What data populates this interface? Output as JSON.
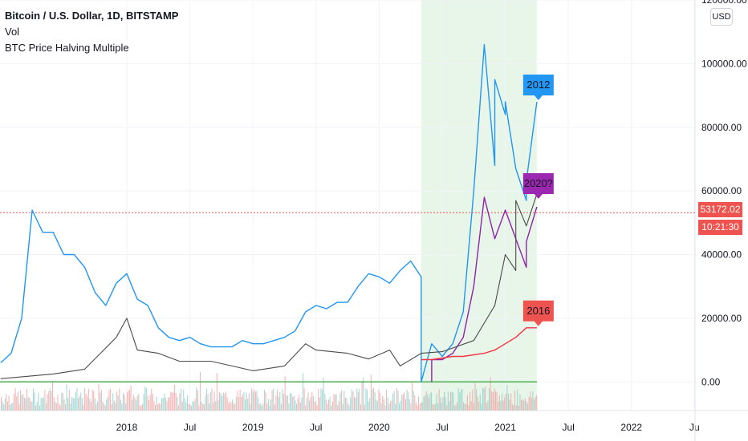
{
  "header": {
    "title": "Bitcoin / U.S. Dollar, 1D, BITSTAMP",
    "indicator1": "Vol",
    "indicator2": "BTC Price Halving Multiple"
  },
  "currency_button": "USD",
  "price_tag": {
    "price": "53172.02",
    "countdown": "10:21:30"
  },
  "colors": {
    "blue": "#2196f3",
    "purple": "#8e24aa",
    "red": "#f23645",
    "green_band": "#e8f5e9",
    "zero_line": "#4caf50",
    "price_line": "#ef5350"
  },
  "chart_data": {
    "type": "line",
    "title": "Bitcoin / U.S. Dollar, 1D, BITSTAMP",
    "y_ticks": [
      "120000.00",
      "100000.00",
      "80000.00",
      "60000.00",
      "40000.00",
      "20000.00",
      "0.00"
    ],
    "y_tick_values": [
      120000,
      100000,
      80000,
      60000,
      40000,
      20000,
      0
    ],
    "x_ticks": [
      "2018",
      "Jul",
      "2019",
      "Jul",
      "2020",
      "Jul",
      "2021",
      "Jul",
      "2022",
      "Ju"
    ],
    "x_tick_values": [
      "2018-01",
      "2018-07",
      "2019-01",
      "2019-07",
      "2020-01",
      "2020-07",
      "2021-01",
      "2021-07",
      "2022-01",
      "2022-07"
    ],
    "x_range": [
      "2017-01",
      "2022-07"
    ],
    "ylim": [
      -9000,
      120000
    ],
    "highlight_range": [
      "2020-05",
      "2021-04"
    ],
    "current_price": 53172.02,
    "callouts": [
      {
        "label": "2012",
        "x": "2021-04",
        "y": 88000,
        "color": "#2196f3"
      },
      {
        "label": "2020?",
        "x": "2021-04",
        "y": 57000,
        "color": "#9c27b0"
      },
      {
        "label": "2016",
        "x": "2021-04",
        "y": 17000,
        "color": "#ef5350"
      }
    ],
    "series": [
      {
        "name": "2012",
        "color": "#2196f3",
        "points": [
          [
            "2017-01",
            6000
          ],
          [
            "2017-02",
            9000
          ],
          [
            "2017-03",
            20000
          ],
          [
            "2017-04",
            54000
          ],
          [
            "2017-05",
            47000
          ],
          [
            "2017-06",
            47000
          ],
          [
            "2017-07",
            40000
          ],
          [
            "2017-08",
            40000
          ],
          [
            "2017-09",
            36000
          ],
          [
            "2017-10",
            28000
          ],
          [
            "2017-11",
            24000
          ],
          [
            "2017-12",
            31000
          ],
          [
            "2018-01",
            34000
          ],
          [
            "2018-02",
            26000
          ],
          [
            "2018-03",
            24000
          ],
          [
            "2018-04",
            17000
          ],
          [
            "2018-05",
            14000
          ],
          [
            "2018-06",
            13000
          ],
          [
            "2018-07",
            14000
          ],
          [
            "2018-08",
            12000
          ],
          [
            "2018-09",
            11000
          ],
          [
            "2018-10",
            11000
          ],
          [
            "2018-11",
            11000
          ],
          [
            "2018-12",
            13000
          ],
          [
            "2019-01",
            12000
          ],
          [
            "2019-02",
            12000
          ],
          [
            "2019-03",
            13000
          ],
          [
            "2019-04",
            14000
          ],
          [
            "2019-05",
            16000
          ],
          [
            "2019-06",
            22000
          ],
          [
            "2019-07",
            24000
          ],
          [
            "2019-08",
            23000
          ],
          [
            "2019-09",
            25000
          ],
          [
            "2019-10",
            25000
          ],
          [
            "2019-11",
            30000
          ],
          [
            "2019-12",
            34000
          ],
          [
            "2020-01",
            33000
          ],
          [
            "2020-02",
            31000
          ],
          [
            "2020-03",
            35000
          ],
          [
            "2020-04",
            38000
          ],
          [
            "2020-05",
            33000
          ],
          [
            "2020-05",
            0
          ],
          [
            "2020-06",
            12000
          ],
          [
            "2020-07",
            8000
          ],
          [
            "2020-08",
            12000
          ],
          [
            "2020-09",
            22000
          ],
          [
            "2020-10",
            60000
          ],
          [
            "2020-11",
            106000
          ],
          [
            "2020-12",
            68000
          ],
          [
            "2020-12",
            95000
          ],
          [
            "2021-01",
            84000
          ],
          [
            "2021-01",
            88000
          ],
          [
            "2021-02",
            67000
          ],
          [
            "2021-03",
            57000
          ],
          [
            "2021-03",
            63000
          ],
          [
            "2021-04",
            88000
          ]
        ]
      },
      {
        "name": "2020?",
        "color": "#8e24aa",
        "points": [
          [
            "2020-06",
            0
          ],
          [
            "2020-06",
            7000
          ],
          [
            "2020-07",
            7000
          ],
          [
            "2020-08",
            9000
          ],
          [
            "2020-09",
            14000
          ],
          [
            "2020-10",
            30000
          ],
          [
            "2020-11",
            58000
          ],
          [
            "2020-12",
            45000
          ],
          [
            "2021-01",
            54000
          ],
          [
            "2021-02",
            45000
          ],
          [
            "2021-03",
            36000
          ],
          [
            "2021-03",
            44000
          ],
          [
            "2021-04",
            55000
          ]
        ]
      },
      {
        "name": "2016",
        "color": "#f23645",
        "points": [
          [
            "2020-05",
            7000
          ],
          [
            "2020-06",
            7000
          ],
          [
            "2020-07",
            7500
          ],
          [
            "2020-08",
            8000
          ],
          [
            "2020-09",
            8000
          ],
          [
            "2020-10",
            8500
          ],
          [
            "2020-11",
            9000
          ],
          [
            "2020-12",
            10000
          ],
          [
            "2021-01",
            12000
          ],
          [
            "2021-02",
            14000
          ],
          [
            "2021-03",
            17000
          ],
          [
            "2021-04",
            17000
          ]
        ]
      },
      {
        "name": "price",
        "color": "#4b4b4b",
        "points": [
          [
            "2017-01",
            1000
          ],
          [
            "2017-06",
            2500
          ],
          [
            "2017-09",
            4000
          ],
          [
            "2017-12",
            14000
          ],
          [
            "2018-01",
            20000
          ],
          [
            "2018-02",
            10000
          ],
          [
            "2018-04",
            9000
          ],
          [
            "2018-06",
            6500
          ],
          [
            "2018-09",
            6500
          ],
          [
            "2018-11",
            5000
          ],
          [
            "2019-01",
            3500
          ],
          [
            "2019-04",
            5000
          ],
          [
            "2019-06",
            12000
          ],
          [
            "2019-07",
            10000
          ],
          [
            "2019-10",
            9000
          ],
          [
            "2019-12",
            7200
          ],
          [
            "2020-02",
            10000
          ],
          [
            "2020-03",
            5000
          ],
          [
            "2020-05",
            9000
          ],
          [
            "2020-07",
            9500
          ],
          [
            "2020-10",
            13000
          ],
          [
            "2020-12",
            24000
          ],
          [
            "2021-01",
            40000
          ],
          [
            "2021-02",
            35000
          ],
          [
            "2021-02",
            57000
          ],
          [
            "2021-03",
            49000
          ],
          [
            "2021-04",
            59000
          ]
        ]
      }
    ]
  }
}
